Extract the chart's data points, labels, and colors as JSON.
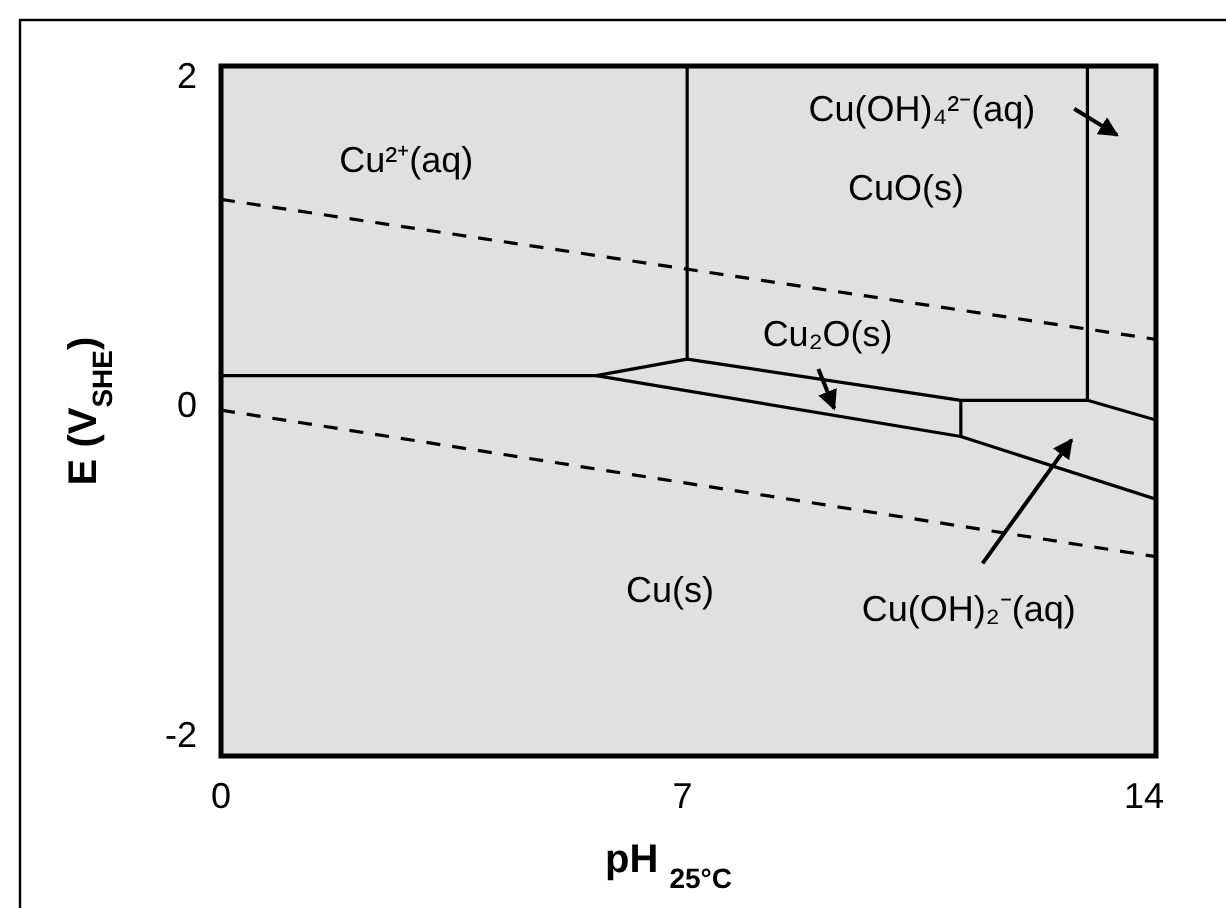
{
  "chart_data": {
    "type": "line",
    "xlabel": "pH $_{25°C}$",
    "ylabel": "E (V$_{SHE}$)",
    "xlim": [
      0,
      14.18
    ],
    "ylim": [
      -2.13,
      2.06
    ],
    "xticks": [
      0,
      7,
      14
    ],
    "yticks": [
      -2,
      0,
      2
    ],
    "grid": false,
    "marker": "none",
    "series": [
      {
        "color": "#000000",
        "x": [
          0,
          5.69,
          7.07,
          7.07
        ],
        "values": [
          0.18,
          0.18,
          0.28,
          2.06
        ]
      },
      {
        "color": "#000000",
        "x": [
          7.07,
          11.22,
          13.14,
          14.18
        ],
        "values": [
          0.28,
          0.03,
          0.03,
          -0.09
        ]
      },
      {
        "color": "#000000",
        "x": [
          5.69,
          11.22,
          14.18
        ],
        "values": [
          0.18,
          -0.19,
          -0.57
        ]
      },
      {
        "color": "#000000",
        "x": [
          11.22,
          11.22
        ],
        "values": [
          0.03,
          -0.19
        ]
      },
      {
        "color": "#000000",
        "x": [
          13.14,
          13.14
        ],
        "values": [
          0.03,
          2.06
        ]
      },
      {
        "color": "#000000",
        "x": [
          0,
          14.18
        ],
        "values": [
          1.25,
          0.4
        ],
        "line_style": "dashed"
      },
      {
        "color": "#000000",
        "x": [
          0,
          14.18
        ],
        "values": [
          -0.03,
          -0.92
        ],
        "line_style": "dashed"
      }
    ],
    "annotations": [
      "Cu²⁺(aq)",
      "Cu(OH)₄²⁻(aq)",
      "CuO(s)",
      "Cu₂O(s)",
      "Cu(s)",
      "Cu(OH)₂⁻(aq)"
    ]
  }
}
